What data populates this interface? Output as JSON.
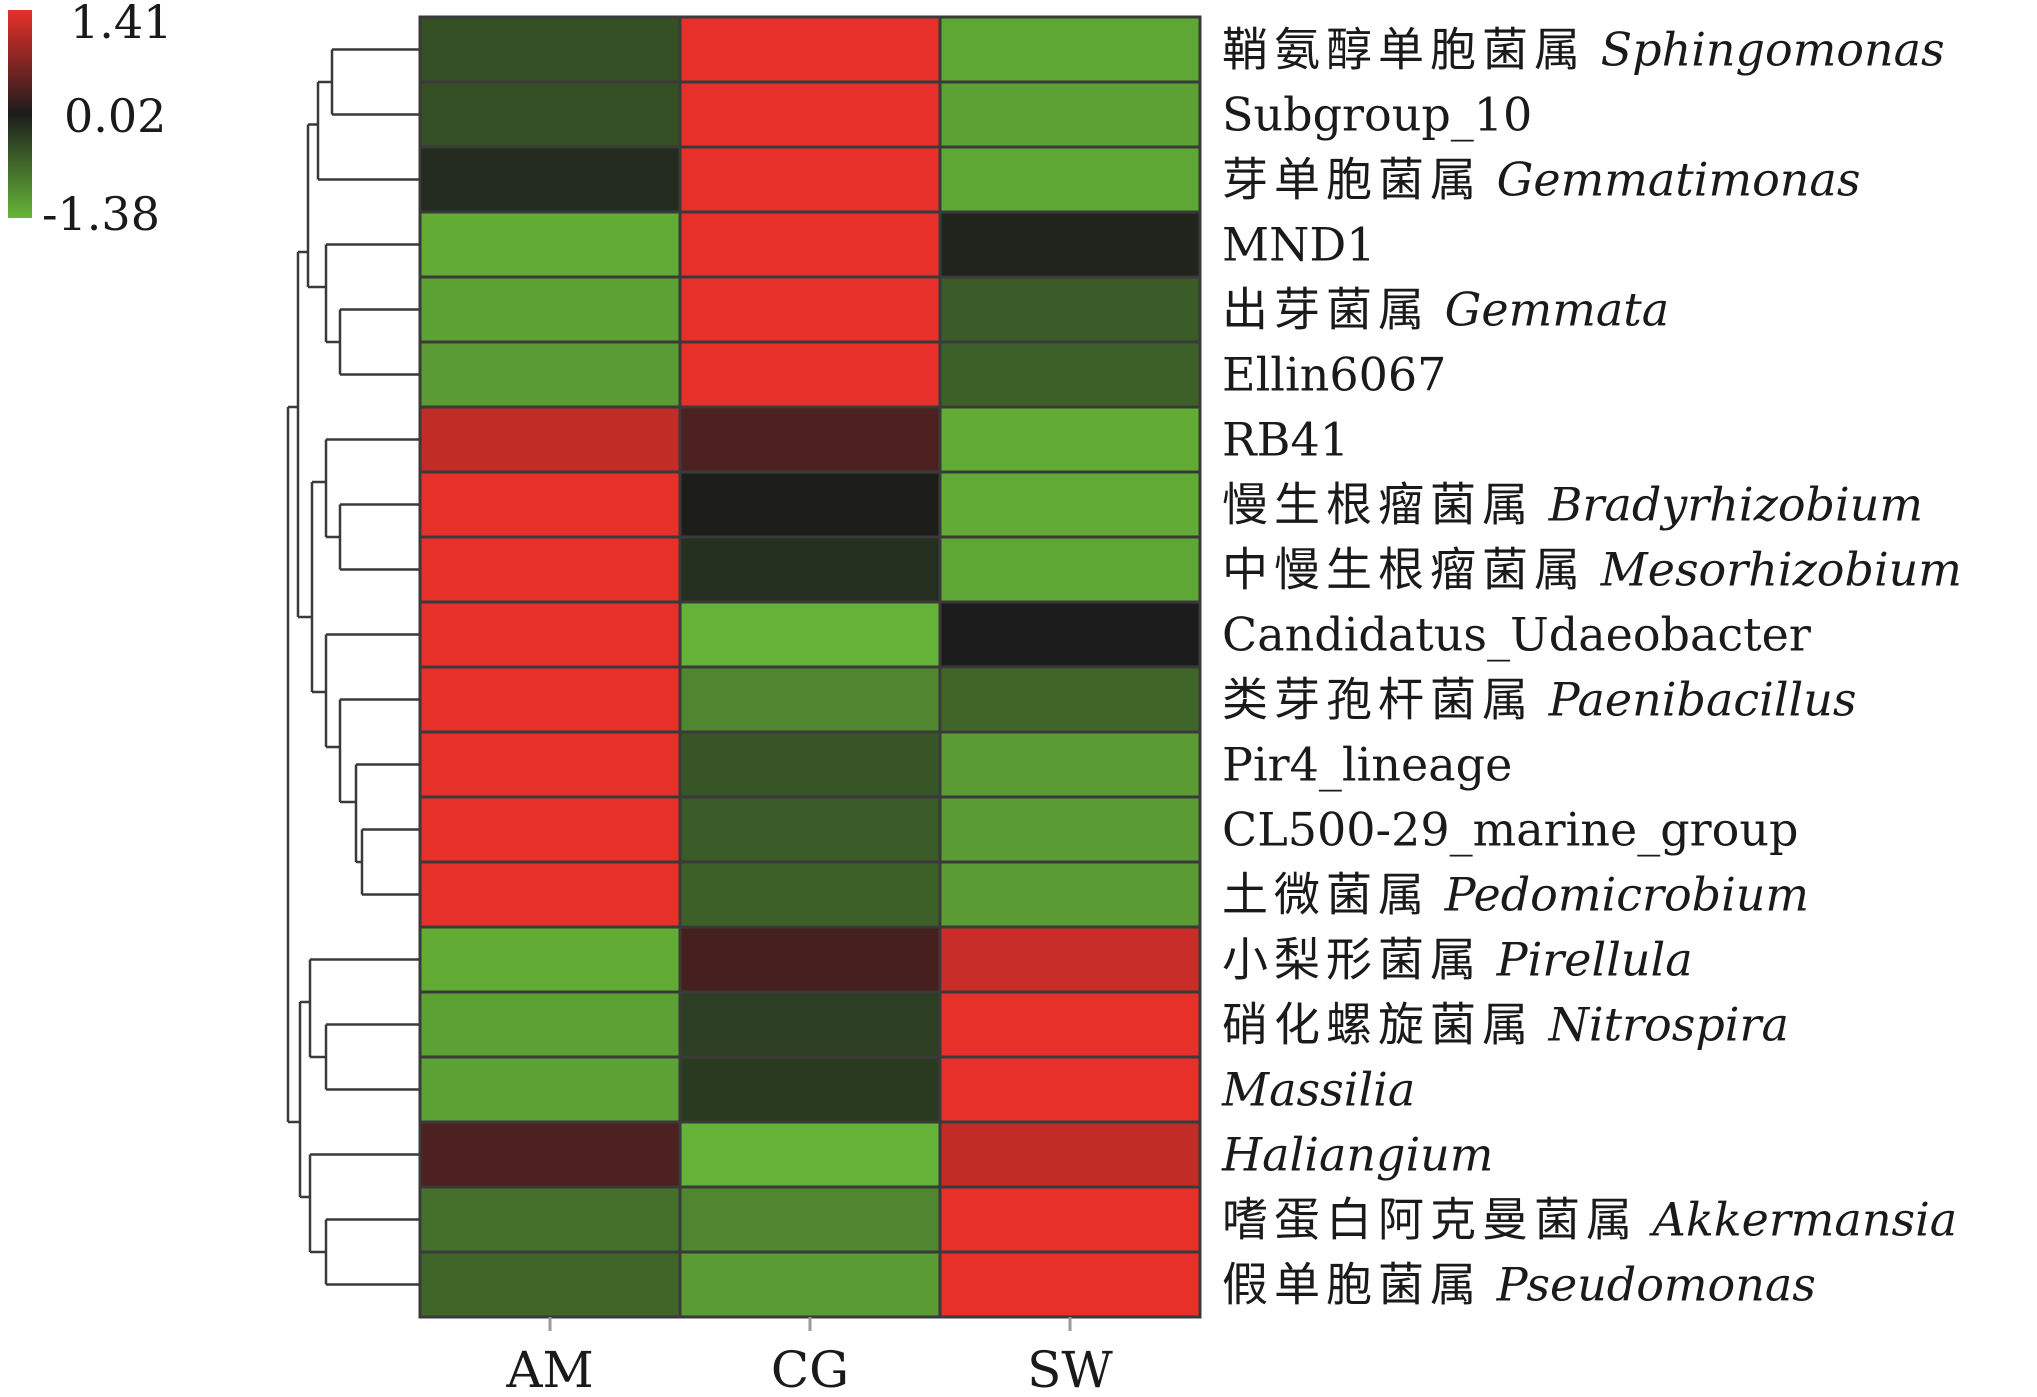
{
  "chart_data": {
    "type": "heatmap",
    "title": "",
    "xlabel": "",
    "ylabel": "",
    "columns": [
      "AM",
      "CG",
      "SW"
    ],
    "colorbar": {
      "max_label": "1.41",
      "mid_label": "0.02",
      "min_label": "-1.38",
      "max": 1.41,
      "mid": 0.02,
      "min": -1.38,
      "colors": {
        "high": "#e8302a",
        "mid": "#1c1c1c",
        "low": "#66b538"
      }
    },
    "rows": [
      {
        "cn": "鞘氨醇单胞菌属",
        "latin": "Sphingomonas",
        "values": [
          -0.45,
          1.41,
          -1.25
        ]
      },
      {
        "cn": "",
        "latin": "",
        "plain": "Subgroup_10",
        "values": [
          -0.45,
          1.41,
          -1.2
        ]
      },
      {
        "cn": "芽单胞菌属",
        "latin": "Gemmatimonas",
        "values": [
          -0.12,
          1.41,
          -1.25
        ]
      },
      {
        "cn": "",
        "latin": "",
        "plain": "MND1",
        "values": [
          -1.3,
          1.41,
          -0.05
        ]
      },
      {
        "cn": "出芽菌属",
        "latin": "Gemmata",
        "values": [
          -1.2,
          1.41,
          -0.55
        ]
      },
      {
        "cn": "",
        "latin": "",
        "plain": "Ellin6067",
        "values": [
          -1.15,
          1.41,
          -0.6
        ]
      },
      {
        "cn": "",
        "latin": "",
        "plain": "RB41",
        "values": [
          1.15,
          0.35,
          -1.3
        ]
      },
      {
        "cn": "慢生根瘤菌属",
        "latin": "Bradyrhizobium",
        "values": [
          1.41,
          0.0,
          -1.3
        ]
      },
      {
        "cn": "中慢生根瘤菌属",
        "latin": "Mesorhizobium",
        "values": [
          1.41,
          -0.15,
          -1.25
        ]
      },
      {
        "cn": "",
        "latin": "",
        "plain": "Candidatus_Udaeobacter",
        "values": [
          1.41,
          -1.35,
          0.02
        ]
      },
      {
        "cn": "类芽孢杆菌属",
        "latin": "Paenibacillus",
        "values": [
          1.41,
          -0.95,
          -0.65
        ]
      },
      {
        "cn": "",
        "latin": "",
        "plain": "Pir4_lineage",
        "values": [
          1.41,
          -0.5,
          -1.15
        ]
      },
      {
        "cn": "",
        "latin": "",
        "plain": "CL500-29_marine_group",
        "values": [
          1.41,
          -0.55,
          -1.15
        ]
      },
      {
        "cn": "土微菌属",
        "latin": "Pedomicrobium",
        "values": [
          1.41,
          -0.6,
          -1.15
        ]
      },
      {
        "cn": "小梨形菌属",
        "latin": "Pirellula",
        "values": [
          -1.3,
          0.3,
          1.2
        ]
      },
      {
        "cn": "硝化螺旋菌属",
        "latin": "Nitrospira",
        "values": [
          -1.2,
          -0.3,
          1.41
        ]
      },
      {
        "cn": "",
        "latin": "Massilia",
        "values": [
          -1.2,
          -0.25,
          1.41
        ]
      },
      {
        "cn": "",
        "latin": "Haliangium",
        "values": [
          0.35,
          -1.35,
          1.15
        ]
      },
      {
        "cn": "嗜蛋白阿克曼菌属",
        "latin": "Akkermansia",
        "values": [
          -0.75,
          -0.95,
          1.41
        ]
      },
      {
        "cn": "假单胞菌属",
        "latin": "Pseudomonas",
        "values": [
          -0.65,
          -1.15,
          1.41
        ]
      }
    ]
  }
}
